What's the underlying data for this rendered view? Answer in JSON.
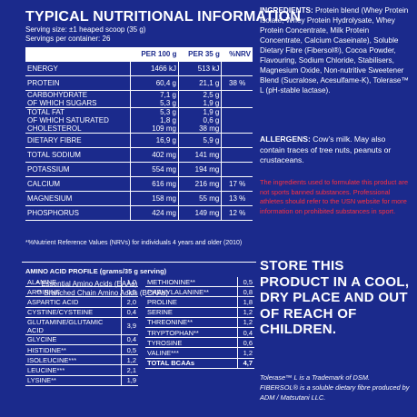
{
  "title": "TYPICAL NUTRITIONAL INFORMATION",
  "serving_size": "Serving size: ±1 heaped scoop (35 g)",
  "servings": "Servings per container: 26",
  "headers": [
    "",
    "PER 100 g",
    "PER 35 g",
    "%NRV"
  ],
  "rows": [
    [
      "ENERGY",
      "1466 kJ",
      "513 kJ",
      ""
    ],
    [
      "PROTEIN",
      "60,4 g",
      "21,1 g",
      "38 %"
    ],
    [
      "CARBOHYDRATE",
      "7,1 g",
      "2,5 g",
      ""
    ],
    [
      "OF WHICH SUGARS",
      "5,3 g",
      "1,9 g",
      ""
    ],
    [
      "TOTAL FAT",
      "5,3 g",
      "1,9 g",
      ""
    ],
    [
      "OF WHICH SATURATED",
      "1,8 g",
      "0,6 g",
      ""
    ],
    [
      "CHOLESTEROL",
      "109 mg",
      "38 mg",
      ""
    ],
    [
      "DIETARY FIBRE",
      "16,9 g",
      "5,9 g",
      ""
    ],
    [
      "TOTAL SODIUM",
      "402 mg",
      "141 mg",
      ""
    ],
    [
      "POTASSIUM",
      "554 mg",
      "194 mg",
      ""
    ],
    [
      "CALCIUM",
      "616 mg",
      "216 mg",
      "17 %"
    ],
    [
      "MAGNESIUM",
      "158 mg",
      "55 mg",
      "13 %"
    ],
    [
      "PHOSPHORUS",
      "424 mg",
      "149 mg",
      "12 %"
    ]
  ],
  "footnote": "*%Nutrient Reference Values (NRVs) for individuals 4 years and older (2010)",
  "amino_title": "AMINO ACID PROFILE (grams/35 g serving)",
  "amino_overlay1": "* Essential Amino Acids (EAAs)",
  "amino_overlay2": "** Branched Chain Amino Acids (BCAAs)",
  "amino_left": [
    [
      "ALANINE",
      "1,0"
    ],
    [
      "ARGININE",
      "0,6"
    ],
    [
      "ASPARTIC ACID",
      "2,0"
    ],
    [
      "CYSTINE/CYSTEINE",
      "0,4"
    ],
    [
      "GLUTAMINE/GLUTAMIC ACID",
      "3,9"
    ],
    [
      "GLYCINE",
      "0,4"
    ],
    [
      "HISTIDINE**",
      "0,5"
    ],
    [
      "ISOLEUCINE***",
      "1,2"
    ],
    [
      "LEUCINE***",
      "2,1"
    ],
    [
      "LYSINE**",
      "1,9"
    ]
  ],
  "amino_right": [
    [
      "METHIONINE**",
      "0,5"
    ],
    [
      "PHENYLALANINE**",
      "0,8"
    ],
    [
      "PROLINE",
      "1,8"
    ],
    [
      "SERINE",
      "1,2"
    ],
    [
      "THREONINE**",
      "1,2"
    ],
    [
      "TRYPTOPHAN**",
      "0,4"
    ],
    [
      "TYROSINE",
      "0,6"
    ],
    [
      "VALINE***",
      "1,2"
    ],
    [
      "TOTAL BCAAs",
      "4,7"
    ]
  ],
  "ingredients_label": "INGREDIENTS:",
  "ingredients": "Protein blend (Whey Protein Isolate, Whey Protein Hydrolysate, Whey Protein Concentrate, Milk Protein Concentrate, Calcium Caseinate), Soluble Dietary Fibre (Fibersol®), Cocoa Powder, Flavouring, Sodium Chloride, Stabilisers, Magnesium Oxide, Non-nutritive Sweetener Blend (Sucralose, Acesulfame-K), Tolerase™ L (pH-stable lactase).",
  "allergens_label": "ALLERGENS:",
  "allergens": "Cow’s milk. May also contain traces of tree nuts, peanuts or crustaceans.",
  "warning": "The ingredients used to formulate this product are not sports banned substances. Professional athletes should refer to the USN website for more information on prohibited substances in sport.",
  "store": "STORE THIS PRODUCT IN A COOL, DRY PLACE AND OUT OF REACH OF CHILDREN.",
  "tm1": "Tolerase™ L is a Trademark of DSM.",
  "tm2": "FIBERSOL® is a soluble dietary fibre produced by ADM / Matsutani LLC."
}
